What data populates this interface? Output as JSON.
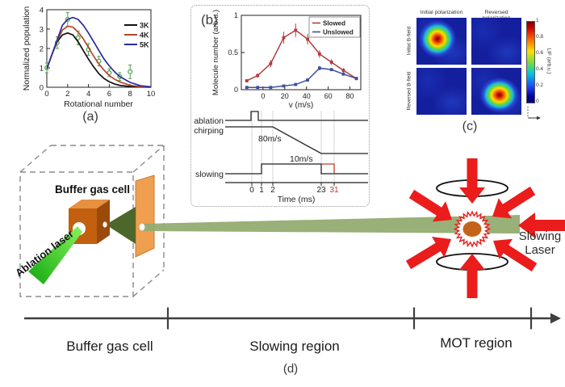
{
  "colors": {
    "laser_red": "#ea1c1c",
    "beam_green": "#93ac71",
    "cone_green": "#4d672a",
    "ablation_green": "#2ecc1e",
    "cube_orange": "#c2600f",
    "plate_orange": "#ef9f4f",
    "mot_core_orange": "#c4641a",
    "highlight_red": "#c0392b",
    "data_point_green": "#46a349"
  },
  "panel_tags": {
    "a": "(a)",
    "b": "(b)",
    "c": "(c)",
    "d": "(d)"
  },
  "chart_data": [
    {
      "id": "rotational_population",
      "type": "line",
      "xlabel": "Rotational number",
      "ylabel": "Normalized population",
      "xlim": [
        0,
        10
      ],
      "ylim": [
        0,
        4
      ],
      "xticks": [
        0,
        2,
        4,
        6,
        8,
        10
      ],
      "yticks": [
        0,
        1,
        2,
        3,
        4
      ],
      "legend_position": "upper right",
      "grid": false,
      "series": [
        {
          "name": "3K",
          "color": "#111111",
          "x": [
            0,
            0.5,
            1,
            1.5,
            2,
            2.5,
            3,
            3.5,
            4,
            4.5,
            5,
            5.5,
            6,
            6.5,
            7,
            8,
            9,
            10
          ],
          "y": [
            0.95,
            1.7,
            2.35,
            2.7,
            2.8,
            2.7,
            2.35,
            1.9,
            1.45,
            1.05,
            0.7,
            0.45,
            0.28,
            0.17,
            0.1,
            0.04,
            0.01,
            0
          ]
        },
        {
          "name": "4K",
          "color": "#b4472b",
          "x": [
            0,
            0.5,
            1,
            1.5,
            2,
            2.5,
            3,
            3.5,
            4,
            4.5,
            5,
            5.5,
            6,
            6.5,
            7,
            8,
            9,
            10
          ],
          "y": [
            0.95,
            1.7,
            2.4,
            2.95,
            3.15,
            3.1,
            2.85,
            2.5,
            2.05,
            1.6,
            1.2,
            0.88,
            0.6,
            0.42,
            0.28,
            0.1,
            0.03,
            0
          ]
        },
        {
          "name": "5K",
          "color": "#2b2b9e",
          "x": [
            0,
            0.5,
            1,
            1.5,
            2,
            2.5,
            3,
            3.5,
            4,
            4.5,
            5,
            5.5,
            6,
            6.5,
            7,
            8,
            9,
            10
          ],
          "y": [
            0.95,
            1.7,
            2.45,
            3.2,
            3.5,
            3.6,
            3.5,
            3.2,
            2.8,
            2.35,
            1.9,
            1.45,
            1.1,
            0.8,
            0.55,
            0.25,
            0.08,
            0.02
          ]
        }
      ],
      "data_points": {
        "color": "#46a349",
        "x": [
          0,
          1,
          2,
          3,
          4,
          5,
          6,
          7,
          8
        ],
        "y": [
          1.0,
          2.3,
          3.5,
          2.55,
          1.95,
          1.35,
          0.75,
          0.55,
          0.8
        ],
        "err": [
          0.25,
          0.3,
          0.35,
          0.35,
          0.3,
          0.25,
          0.2,
          0.2,
          0.35
        ]
      }
    },
    {
      "id": "velocity_distribution",
      "type": "line",
      "xlabel": "v  (m/s)",
      "ylabel": "Molecule number (arb.u.)",
      "xlim": [
        -20,
        90
      ],
      "ylim": [
        0,
        1
      ],
      "xticks": [
        0,
        20,
        40,
        60,
        80
      ],
      "yticks": [
        0,
        0.5,
        1
      ],
      "legend_position": "upper right",
      "grid": false,
      "series": [
        {
          "name": "Slowed",
          "color": "#b23b3b",
          "x": [
            -15,
            -5,
            7,
            19,
            30,
            41,
            52,
            63,
            74,
            86
          ],
          "y": [
            0.12,
            0.19,
            0.35,
            0.7,
            0.8,
            0.68,
            0.48,
            0.37,
            0.26,
            0.15
          ],
          "err": [
            0.02,
            0.03,
            0.05,
            0.08,
            0.09,
            0.07,
            0.05,
            0.04,
            0.03,
            0.02
          ]
        },
        {
          "name": "Unslowed",
          "color": "#3f4f9b",
          "x": [
            -15,
            -5,
            7,
            19,
            30,
            41,
            52,
            63,
            74,
            86
          ],
          "y": [
            0.03,
            0.03,
            0.03,
            0.05,
            0.07,
            0.13,
            0.29,
            0.27,
            0.21,
            0.15
          ],
          "err": [
            0.01,
            0.01,
            0.01,
            0.01,
            0.02,
            0.02,
            0.03,
            0.02,
            0.02,
            0.02
          ]
        }
      ]
    },
    {
      "id": "timing_sequence",
      "type": "timing",
      "xlabel": "Time (ms)",
      "channels": [
        "ablation",
        "chirping",
        "slowing"
      ],
      "xtick_labels": [
        "0",
        "1",
        "2",
        "23",
        "31"
      ],
      "xtick_highlight": "31",
      "annotations": [
        "80m/s",
        "10m/s"
      ]
    },
    {
      "id": "mot_fluorescence_images",
      "type": "heatmap",
      "col_labels": [
        "Initial polarization",
        "Reversed polarization"
      ],
      "row_labels": [
        "Initial B-field",
        "Reversed B-field"
      ],
      "cells": [
        [
          "blob",
          "flat"
        ],
        [
          "flat",
          "blob"
        ]
      ],
      "colorbar_label": "LIF (arb.u.)",
      "colorbar_ticks": [
        "1",
        "0.8",
        "0.6",
        "0.4",
        "0.2",
        "0"
      ]
    }
  ],
  "diagram": {
    "buffer_cell_label": "Buffer gas cell",
    "ablation_laser_label": "Ablation laser",
    "slowing_laser_line1": "Slowing",
    "slowing_laser_line2": "Laser",
    "regions": [
      "Buffer gas cell",
      "Slowing region",
      "MOT region"
    ]
  }
}
